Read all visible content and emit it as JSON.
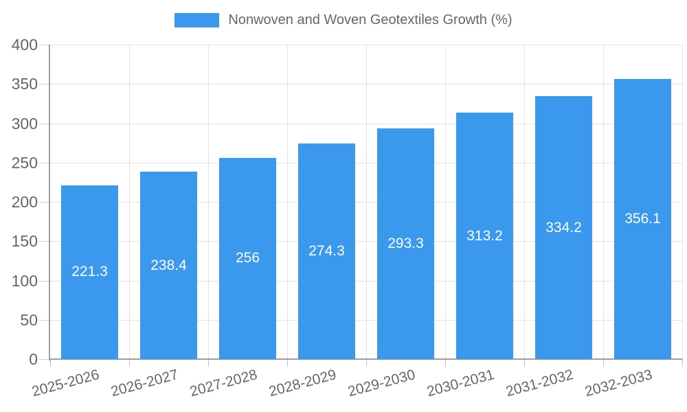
{
  "legend": {
    "label": "Nonwoven and Woven Geotextiles Growth (%)",
    "swatch_color": "#3a99ec"
  },
  "chart_data": {
    "type": "bar",
    "title": "Nonwoven and Woven Geotextiles Growth (%)",
    "categories": [
      "2025-2026",
      "2026-2027",
      "2027-2028",
      "2028-2029",
      "2029-2030",
      "2030-2031",
      "2031-2032",
      "2032-2033"
    ],
    "series": [
      {
        "name": "Nonwoven and Woven Geotextiles Growth (%)",
        "values": [
          221.3,
          238.4,
          256,
          274.3,
          293.3,
          313.2,
          334.2,
          356.1
        ],
        "value_labels": [
          "221.3",
          "238.4",
          "256",
          "274.3",
          "293.3",
          "313.2",
          "334.2",
          "356.1"
        ]
      }
    ],
    "xlabel": "",
    "ylabel": "",
    "ylim": [
      0,
      400
    ],
    "yticks": [
      0,
      50,
      100,
      150,
      200,
      250,
      300,
      350,
      400
    ],
    "grid": true,
    "legend_position": "top",
    "colors": {
      "bar": "#3a99ec",
      "bar_value_text": "#ffffff",
      "tick_text": "#666666",
      "legend_text": "#666666",
      "gridline": "#e3e3e3",
      "axis_line": "#9e9e9e",
      "background": "#ffffff"
    }
  }
}
